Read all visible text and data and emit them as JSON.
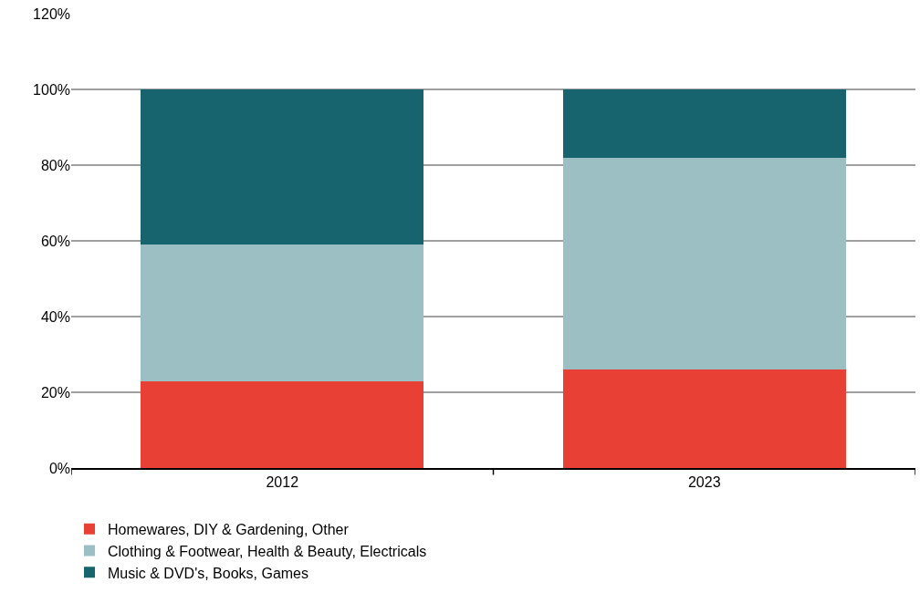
{
  "chart_data": {
    "type": "bar",
    "stacked": true,
    "categories": [
      "2012",
      "2023"
    ],
    "series": [
      {
        "name": "Homewares, DIY & Gardening, Other",
        "color": "#e84034",
        "values": [
          23,
          26
        ]
      },
      {
        "name": "Clothing & Footwear, Health & Beauty, Electricals",
        "color": "#9bbfc2",
        "values": [
          36,
          56
        ]
      },
      {
        "name": "Music & DVD's, Books, Games",
        "color": "#17646e",
        "values": [
          41,
          18
        ]
      }
    ],
    "ylim": [
      0,
      120
    ],
    "yticks": [
      {
        "value": 0,
        "label": "0%"
      },
      {
        "value": 20,
        "label": "20%"
      },
      {
        "value": 40,
        "label": "40%"
      },
      {
        "value": 60,
        "label": "60%"
      },
      {
        "value": 80,
        "label": "80%"
      },
      {
        "value": 100,
        "label": "100%"
      },
      {
        "value": 120,
        "label": "120%"
      }
    ],
    "grid": "y",
    "legend": "bottom"
  }
}
